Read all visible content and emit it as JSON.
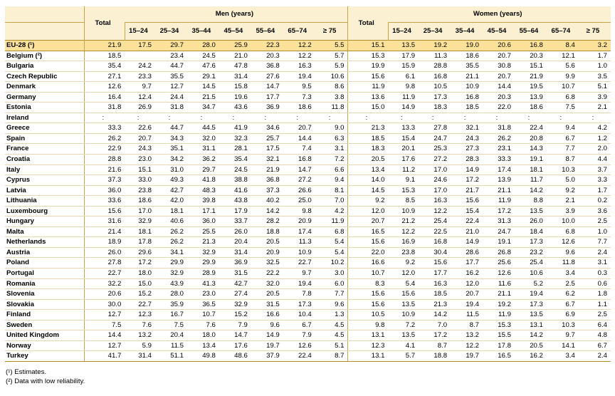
{
  "headers": {
    "total": "Total",
    "men": "Men (years)",
    "women": "Women (years)",
    "ages": [
      "15–24",
      "25–34",
      "35–44",
      "45–54",
      "55–64",
      "65–74",
      "≥ 75"
    ]
  },
  "rows": [
    {
      "country": "EU-28 (¹)",
      "v": [
        "21.9",
        "17.5",
        "29.7",
        "28.0",
        "25.9",
        "22.3",
        "12.2",
        "5.5",
        "15.1",
        "13.5",
        "19.2",
        "19.0",
        "20.6",
        "16.8",
        "8.4",
        "3.2"
      ]
    },
    {
      "country": "Belgium (²)",
      "v": [
        "18.5",
        "",
        "23.4",
        "24.5",
        "21.0",
        "20.3",
        "12.2",
        "5.7",
        "15.3",
        "17.9",
        "11.3",
        "18.6",
        "20.7",
        "20.3",
        "12.1",
        "1.7"
      ]
    },
    {
      "country": "Bulgaria",
      "v": [
        "35.4",
        "24.2",
        "44.7",
        "47.6",
        "47.8",
        "36.8",
        "16.3",
        "5.9",
        "19.9",
        "15.9",
        "28.8",
        "35.5",
        "30.8",
        "15.1",
        "5.6",
        "1.0"
      ]
    },
    {
      "country": "Czech Republic",
      "v": [
        "27.1",
        "23.3",
        "35.5",
        "29.1",
        "31.4",
        "27.6",
        "19.4",
        "10.6",
        "15.6",
        "6.1",
        "16.8",
        "21.1",
        "20.7",
        "21.9",
        "9.9",
        "3.5"
      ]
    },
    {
      "country": "Denmark",
      "v": [
        "12.6",
        "9.7",
        "12.7",
        "14.5",
        "15.8",
        "14.7",
        "9.5",
        "8.6",
        "11.9",
        "9.8",
        "10.5",
        "10.9",
        "14.4",
        "19.5",
        "10.7",
        "5.1"
      ]
    },
    {
      "country": "Germany",
      "v": [
        "16.4",
        "12.4",
        "24.4",
        "21.5",
        "19.6",
        "17.7",
        "7.3",
        "3.8",
        "13.6",
        "11.9",
        "17.3",
        "16.8",
        "20.3",
        "13.9",
        "6.8",
        "3.9"
      ]
    },
    {
      "country": "Estonia",
      "v": [
        "31.8",
        "26.9",
        "31.8",
        "34.7",
        "43.6",
        "36.9",
        "18.6",
        "11.8",
        "15.0",
        "14.9",
        "18.3",
        "18.5",
        "22.0",
        "18.6",
        "7.5",
        "2.1"
      ]
    },
    {
      "country": "Ireland",
      "v": [
        ":",
        ":",
        ":",
        ":",
        ":",
        ":",
        ":",
        ":",
        ":",
        ":",
        ":",
        ":",
        ":",
        ":",
        ":",
        ":"
      ]
    },
    {
      "country": "Greece",
      "v": [
        "33.3",
        "22.6",
        "44.7",
        "44.5",
        "41.9",
        "34.6",
        "20.7",
        "9.0",
        "21.3",
        "13.3",
        "27.8",
        "32.1",
        "31.8",
        "22.4",
        "9.4",
        "4.2"
      ]
    },
    {
      "country": "Spain",
      "v": [
        "26.2",
        "20.7",
        "34.3",
        "32.0",
        "32.3",
        "25.7",
        "14.4",
        "6.3",
        "18.5",
        "15.4",
        "24.7",
        "24.3",
        "26.2",
        "20.8",
        "6.7",
        "1.2"
      ]
    },
    {
      "country": "France",
      "v": [
        "22.9",
        "24.3",
        "35.1",
        "31.1",
        "28.1",
        "17.5",
        "7.4",
        "3.1",
        "18.3",
        "20.1",
        "25.3",
        "27.3",
        "23.1",
        "14.3",
        "7.7",
        "2.0"
      ]
    },
    {
      "country": "Croatia",
      "v": [
        "28.8",
        "23.0",
        "34.2",
        "36.2",
        "35.4",
        "32.1",
        "16.8",
        "7.2",
        "20.5",
        "17.6",
        "27.2",
        "28.3",
        "33.3",
        "19.1",
        "8.7",
        "4.4"
      ]
    },
    {
      "country": "Italy",
      "v": [
        "21.6",
        "15.1",
        "31.0",
        "29.7",
        "24.5",
        "21.9",
        "14.7",
        "6.6",
        "13.4",
        "11.2",
        "17.0",
        "14.9",
        "17.4",
        "18.1",
        "10.3",
        "3.7"
      ]
    },
    {
      "country": "Cyprus",
      "v": [
        "37.3",
        "33.0",
        "49.3",
        "41.8",
        "38.8",
        "36.8",
        "27.2",
        "9.4",
        "14.0",
        "9.1",
        "24.6",
        "17.2",
        "13.9",
        "11.7",
        "5.0",
        "3.3"
      ]
    },
    {
      "country": "Latvia",
      "v": [
        "36.0",
        "23.8",
        "42.7",
        "48.3",
        "41.6",
        "37.3",
        "26.6",
        "8.1",
        "14.5",
        "15.3",
        "17.0",
        "21.7",
        "21.1",
        "14.2",
        "9.2",
        "1.7"
      ]
    },
    {
      "country": "Lithuania",
      "v": [
        "33.6",
        "18.6",
        "42.0",
        "39.8",
        "43.8",
        "40.2",
        "25.0",
        "7.0",
        "9.2",
        "8.5",
        "16.3",
        "15.6",
        "11.9",
        "8.8",
        "2.1",
        "0.2"
      ]
    },
    {
      "country": "Luxembourg",
      "v": [
        "15.6",
        "17.0",
        "18.1",
        "17.1",
        "17.9",
        "14.2",
        "9.8",
        "4.2",
        "12.0",
        "10.9",
        "12.2",
        "15.4",
        "17.2",
        "13.5",
        "3.9",
        "3.6"
      ]
    },
    {
      "country": "Hungary",
      "v": [
        "31.6",
        "32.9",
        "40.6",
        "36.0",
        "33.7",
        "28.2",
        "20.9",
        "11.9",
        "20.7",
        "21.2",
        "25.4",
        "22.4",
        "31.3",
        "26.0",
        "10.0",
        "2.5"
      ]
    },
    {
      "country": "Malta",
      "v": [
        "21.4",
        "18.1",
        "26.2",
        "25.5",
        "26.0",
        "18.8",
        "17.4",
        "6.8",
        "16.5",
        "12.2",
        "22.5",
        "21.0",
        "24.7",
        "18.4",
        "6.8",
        "1.0"
      ]
    },
    {
      "country": "Netherlands",
      "v": [
        "18.9",
        "17.8",
        "26.2",
        "21.3",
        "20.4",
        "20.5",
        "11.3",
        "5.4",
        "15.6",
        "16.9",
        "16.8",
        "14.9",
        "19.1",
        "17.3",
        "12.6",
        "7.7"
      ]
    },
    {
      "country": "Austria",
      "v": [
        "26.0",
        "29.6",
        "34.1",
        "32.9",
        "31.4",
        "20.9",
        "10.9",
        "5.4",
        "22.0",
        "23.8",
        "30.4",
        "28.6",
        "26.8",
        "23.2",
        "9.6",
        "2.4"
      ]
    },
    {
      "country": "Poland",
      "v": [
        "27.8",
        "17.2",
        "29.9",
        "29.9",
        "36.9",
        "32.5",
        "22.7",
        "10.2",
        "16.6",
        "9.2",
        "15.6",
        "17.7",
        "25.6",
        "25.4",
        "11.8",
        "3.1"
      ]
    },
    {
      "country": "Portugal",
      "v": [
        "22.7",
        "18.0",
        "32.9",
        "28.9",
        "31.5",
        "22.2",
        "9.7",
        "3.0",
        "10.7",
        "12.0",
        "17.7",
        "16.2",
        "12.6",
        "10.6",
        "3.4",
        "0.3"
      ]
    },
    {
      "country": "Romania",
      "v": [
        "32.2",
        "15.0",
        "43.9",
        "41.3",
        "42.7",
        "32.0",
        "19.4",
        "6.0",
        "8.3",
        "5.4",
        "16.3",
        "12.0",
        "11.6",
        "5.2",
        "2.5",
        "0.6"
      ]
    },
    {
      "country": "Slovenia",
      "v": [
        "20.6",
        "15.2",
        "28.0",
        "23.0",
        "27.4",
        "20.5",
        "7.8",
        "7.7",
        "15.6",
        "15.6",
        "18.5",
        "20.7",
        "21.1",
        "19.4",
        "6.2",
        "1.8"
      ]
    },
    {
      "country": "Slovakia",
      "v": [
        "30.0",
        "22.7",
        "35.9",
        "36.5",
        "32.9",
        "31.5",
        "17.3",
        "9.6",
        "15.6",
        "13.5",
        "21.3",
        "19.4",
        "19.2",
        "17.3",
        "6.7",
        "1.1"
      ]
    },
    {
      "country": "Finland",
      "v": [
        "12.7",
        "12.3",
        "16.7",
        "10.7",
        "15.2",
        "16.6",
        "10.4",
        "1.3",
        "10.5",
        "10.9",
        "14.2",
        "11.5",
        "11.9",
        "13.5",
        "6.9",
        "2.5"
      ]
    },
    {
      "country": "Sweden",
      "v": [
        "7.5",
        "7.6",
        "7.5",
        "7.6",
        "7.9",
        "9.6",
        "6.7",
        "4.5",
        "9.8",
        "7.2",
        "7.0",
        "8.7",
        "15.3",
        "13.1",
        "10.3",
        "6.4"
      ]
    },
    {
      "country": "United Kingdom",
      "v": [
        "14.4",
        "13.2",
        "20.4",
        "18.0",
        "14.7",
        "14.9",
        "7.9",
        "4.5",
        "13.1",
        "13.5",
        "17.2",
        "13.2",
        "15.5",
        "14.2",
        "9.7",
        "4.8"
      ]
    },
    {
      "country": "Norway",
      "v": [
        "12.7",
        "5.9",
        "11.5",
        "13.4",
        "17.6",
        "19.7",
        "12.6",
        "5.1",
        "12.3",
        "4.1",
        "8.7",
        "12.2",
        "17.8",
        "20.5",
        "14.1",
        "6.7"
      ]
    },
    {
      "country": "Turkey",
      "v": [
        "41.7",
        "31.4",
        "51.1",
        "49.8",
        "48.6",
        "37.9",
        "22.4",
        "8.7",
        "13.1",
        "5.7",
        "18.8",
        "19.7",
        "16.5",
        "16.2",
        "3.4",
        "2.4"
      ]
    }
  ],
  "notes": [
    "(¹) Estimates.",
    "(²) Data with low reliability."
  ]
}
